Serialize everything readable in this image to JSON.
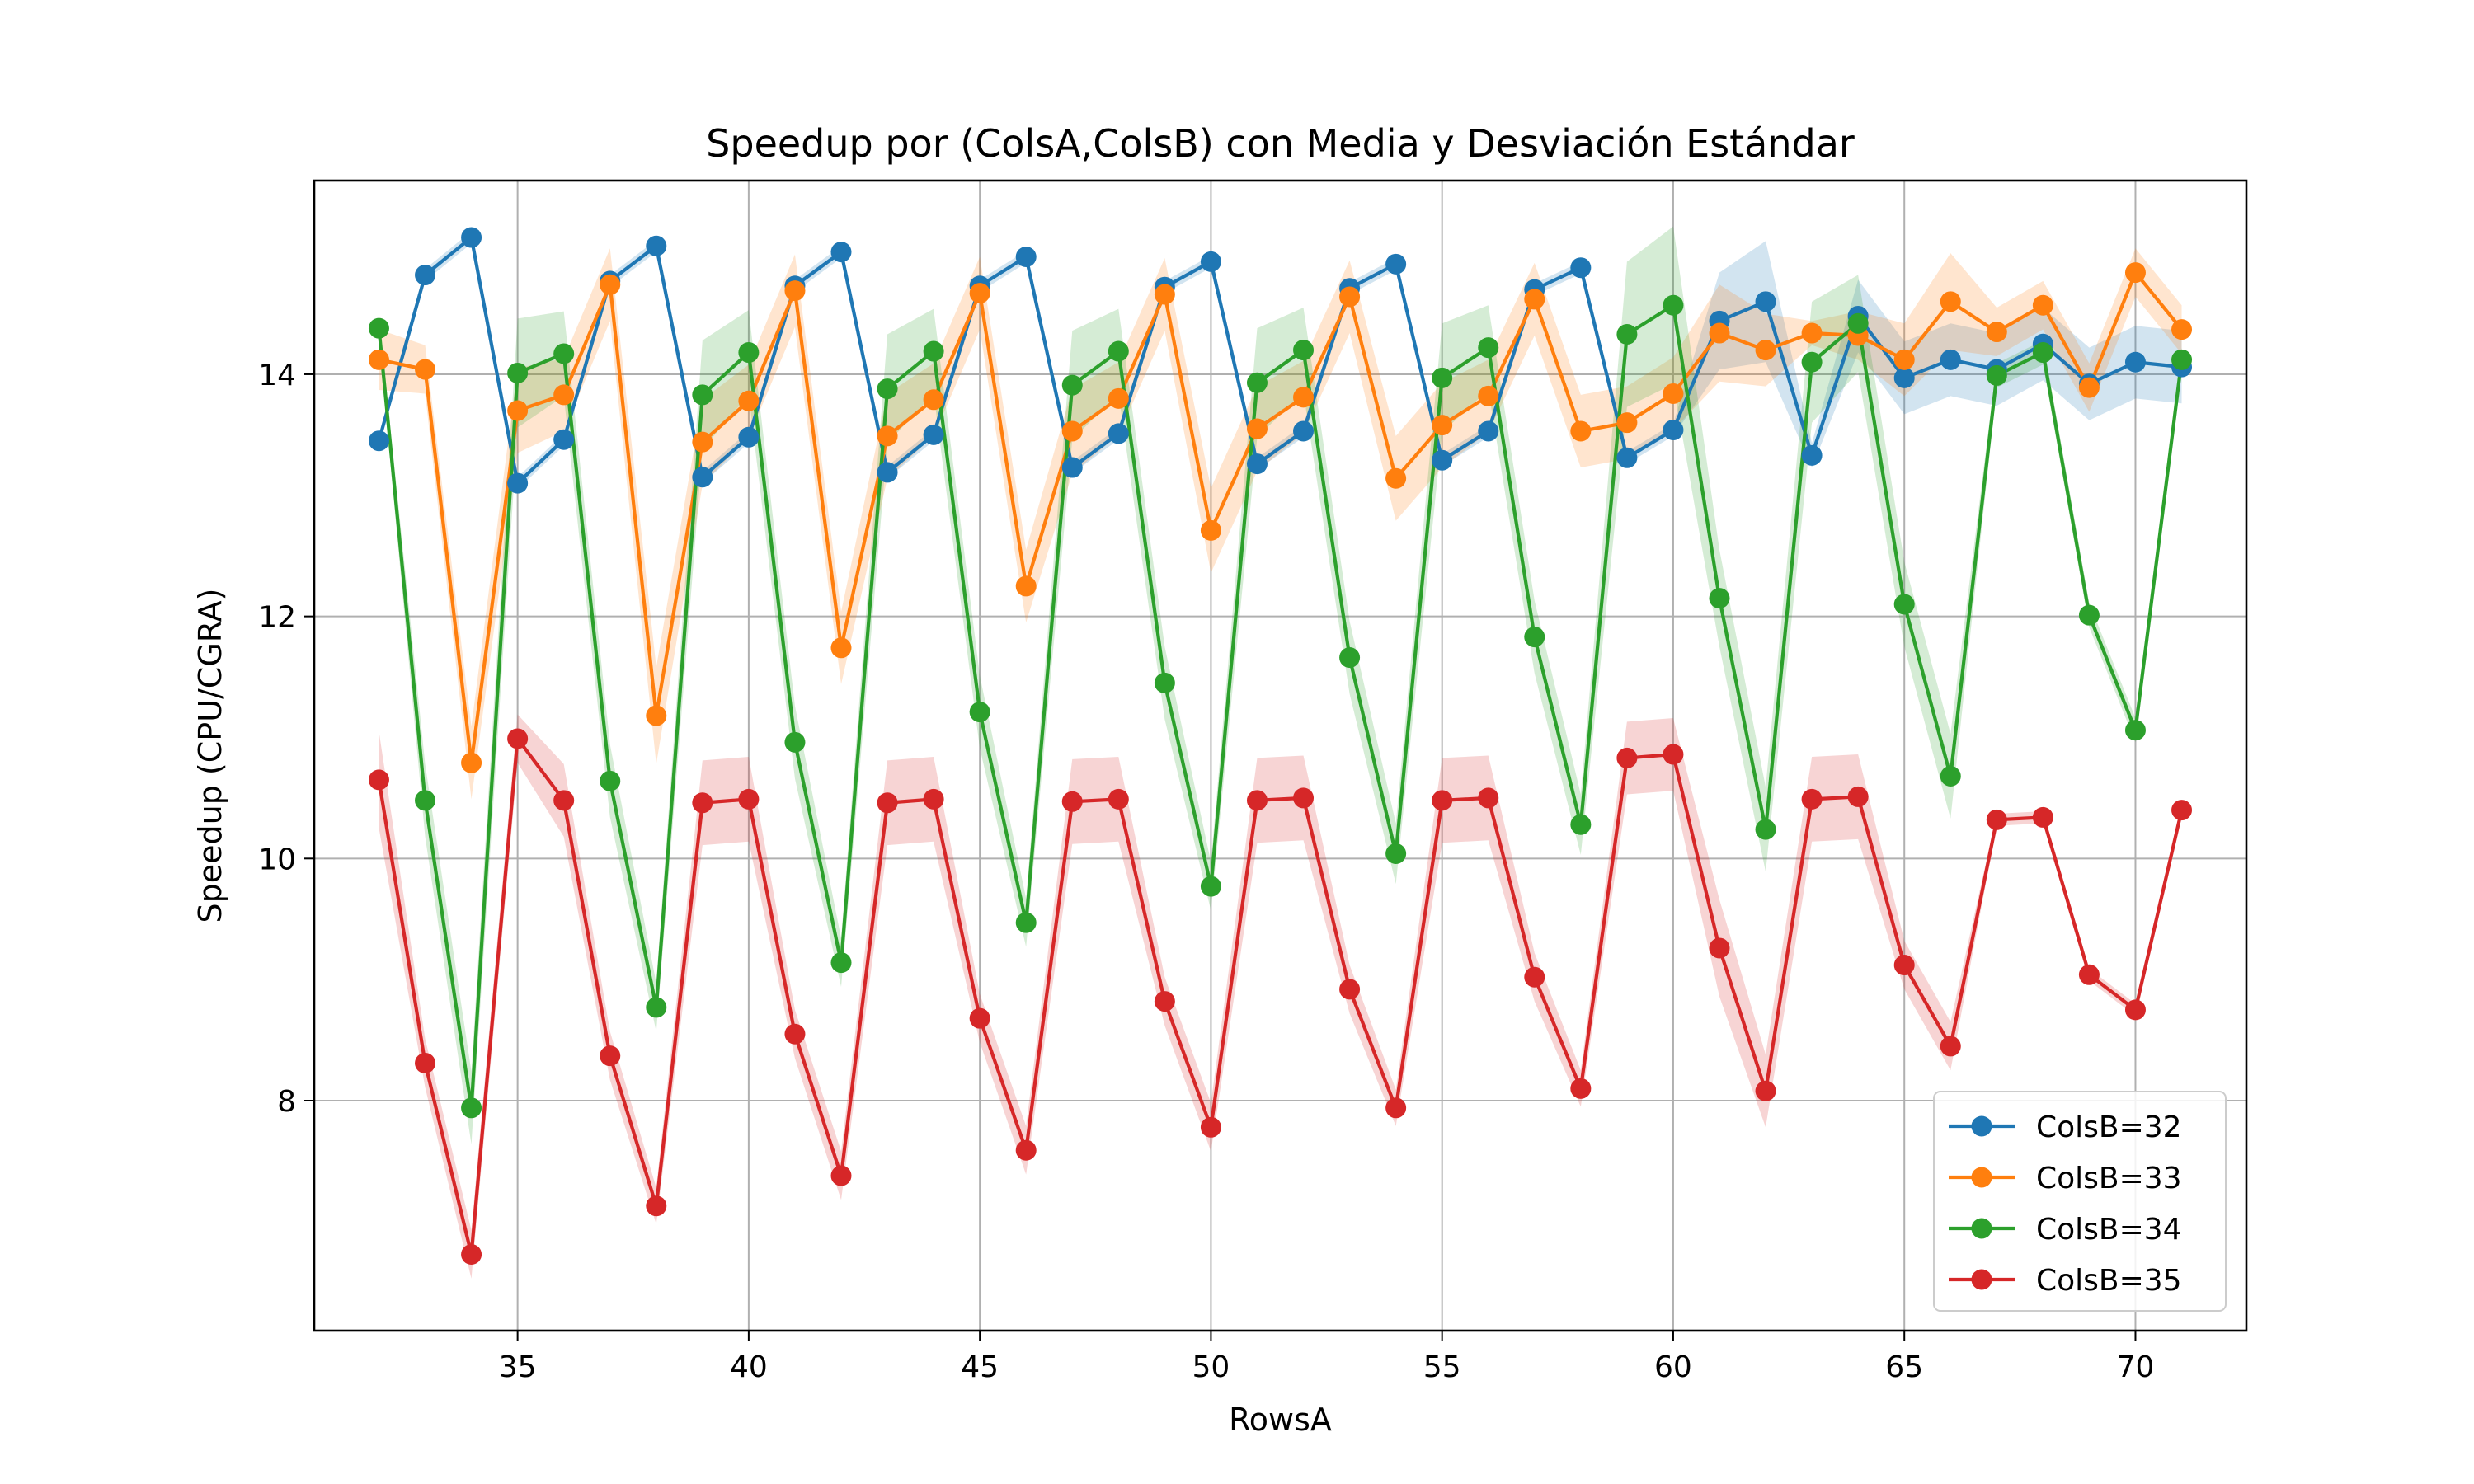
{
  "chart_data": {
    "type": "line",
    "title": "Speedup por (ColsA,ColsB) con Media y Desviación Estándar",
    "xlabel": "RowsA",
    "ylabel": "Speedup (CPU/CGRA)",
    "xlim": [
      30.6,
      72.4
    ],
    "ylim": [
      6.1,
      15.6
    ],
    "xticks": [
      35,
      40,
      45,
      50,
      55,
      60,
      65,
      70
    ],
    "yticks": [
      8,
      10,
      12,
      14
    ],
    "grid": true,
    "legend_position": "lower right",
    "x": [
      32,
      33,
      34,
      35,
      36,
      37,
      38,
      39,
      40,
      41,
      42,
      43,
      44,
      45,
      46,
      47,
      48,
      49,
      50,
      51,
      52,
      53,
      54,
      55,
      56,
      57,
      58,
      59,
      60,
      61,
      62,
      63,
      64,
      65,
      66,
      67,
      68,
      69,
      70,
      71
    ],
    "series": [
      {
        "name": "ColsB=32",
        "color": "#1f77b4",
        "values": [
          13.45,
          14.82,
          15.13,
          13.1,
          13.46,
          14.77,
          15.06,
          13.15,
          13.48,
          14.73,
          15.01,
          13.19,
          13.5,
          14.73,
          14.97,
          13.23,
          13.51,
          14.72,
          14.93,
          13.26,
          13.53,
          14.71,
          14.91,
          13.29,
          13.53,
          14.7,
          14.88,
          13.31,
          13.54,
          14.44,
          14.6,
          13.33,
          14.48,
          13.97,
          14.12,
          14.04,
          14.25,
          13.92,
          14.1,
          14.06
        ],
        "std": [
          0.05,
          0.05,
          0.05,
          0.05,
          0.05,
          0.05,
          0.05,
          0.05,
          0.05,
          0.05,
          0.05,
          0.05,
          0.05,
          0.05,
          0.05,
          0.05,
          0.05,
          0.05,
          0.05,
          0.05,
          0.05,
          0.05,
          0.05,
          0.05,
          0.05,
          0.05,
          0.05,
          0.05,
          0.05,
          0.4,
          0.5,
          0.1,
          0.3,
          0.3,
          0.3,
          0.3,
          0.3,
          0.3,
          0.3,
          0.3
        ]
      },
      {
        "name": "ColsB=33",
        "color": "#ff7f0e",
        "values": [
          14.12,
          14.04,
          10.79,
          13.7,
          13.83,
          14.74,
          11.18,
          13.44,
          13.78,
          14.69,
          11.74,
          13.49,
          13.79,
          14.67,
          12.25,
          13.53,
          13.8,
          14.66,
          12.71,
          13.55,
          13.81,
          14.64,
          13.14,
          13.58,
          13.82,
          14.62,
          13.53,
          13.6,
          13.84,
          14.34,
          14.2,
          14.34,
          14.32,
          14.12,
          14.6,
          14.35,
          14.57,
          13.89,
          14.84,
          14.37
        ],
        "std": [
          0.25,
          0.2,
          0.3,
          0.35,
          0.3,
          0.3,
          0.4,
          0.35,
          0.3,
          0.3,
          0.3,
          0.35,
          0.3,
          0.3,
          0.3,
          0.35,
          0.3,
          0.3,
          0.35,
          0.35,
          0.3,
          0.3,
          0.35,
          0.35,
          0.3,
          0.3,
          0.3,
          0.3,
          0.3,
          0.4,
          0.3,
          0.1,
          0.2,
          0.3,
          0.4,
          0.2,
          0.2,
          0.2,
          0.2,
          0.2
        ]
      },
      {
        "name": "ColsB=34",
        "color": "#2ca02c",
        "values": [
          14.38,
          10.48,
          7.94,
          14.01,
          14.17,
          10.64,
          8.77,
          13.83,
          14.18,
          10.96,
          9.14,
          13.88,
          14.19,
          11.21,
          9.47,
          13.91,
          14.19,
          11.45,
          9.77,
          13.93,
          14.2,
          11.66,
          10.04,
          13.97,
          14.22,
          11.83,
          10.28,
          14.33,
          14.57,
          12.15,
          10.24,
          14.1,
          14.42,
          12.1,
          10.68,
          13.99,
          14.18,
          12.01,
          11.06,
          14.12
        ],
        "std": [
          0.1,
          0.3,
          0.3,
          0.45,
          0.35,
          0.3,
          0.2,
          0.45,
          0.35,
          0.3,
          0.2,
          0.45,
          0.35,
          0.3,
          0.2,
          0.45,
          0.35,
          0.3,
          0.2,
          0.45,
          0.35,
          0.3,
          0.25,
          0.45,
          0.35,
          0.3,
          0.25,
          0.6,
          0.65,
          0.4,
          0.35,
          0.5,
          0.4,
          0.35,
          0.35,
          0.1,
          0.1,
          0.1,
          0.1,
          0.1
        ]
      },
      {
        "name": "ColsB=35",
        "color": "#d62728",
        "values": [
          10.65,
          8.31,
          6.73,
          10.99,
          10.48,
          8.37,
          7.13,
          10.46,
          10.49,
          8.55,
          7.38,
          10.46,
          10.49,
          8.68,
          7.59,
          10.47,
          10.49,
          8.82,
          7.78,
          10.48,
          10.5,
          8.92,
          7.94,
          10.48,
          10.5,
          9.02,
          8.1,
          10.83,
          10.86,
          9.26,
          8.08,
          10.49,
          10.51,
          9.12,
          8.45,
          10.32,
          10.34,
          9.04,
          8.75,
          10.4
        ],
        "std": [
          0.4,
          0.2,
          0.2,
          0.2,
          0.3,
          0.2,
          0.15,
          0.35,
          0.35,
          0.2,
          0.2,
          0.35,
          0.35,
          0.2,
          0.2,
          0.35,
          0.35,
          0.2,
          0.2,
          0.35,
          0.35,
          0.2,
          0.15,
          0.35,
          0.35,
          0.2,
          0.15,
          0.3,
          0.3,
          0.4,
          0.3,
          0.35,
          0.35,
          0.2,
          0.2,
          0.05,
          0.05,
          0.05,
          0.05,
          0.05
        ]
      }
    ]
  }
}
